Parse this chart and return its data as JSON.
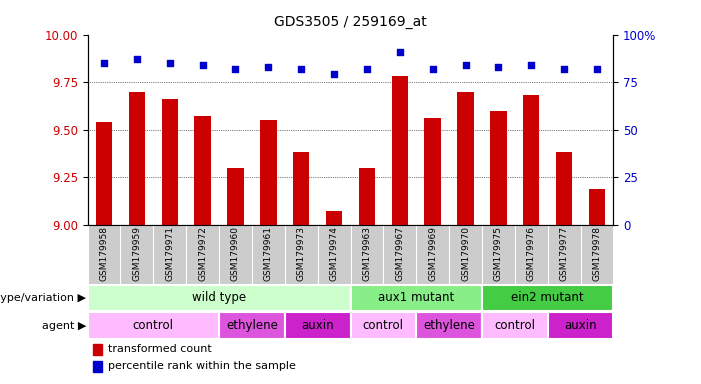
{
  "title": "GDS3505 / 259169_at",
  "samples": [
    "GSM179958",
    "GSM179959",
    "GSM179971",
    "GSM179972",
    "GSM179960",
    "GSM179961",
    "GSM179973",
    "GSM179974",
    "GSM179963",
    "GSM179967",
    "GSM179969",
    "GSM179970",
    "GSM179975",
    "GSM179976",
    "GSM179977",
    "GSM179978"
  ],
  "bar_values": [
    9.54,
    9.7,
    9.66,
    9.57,
    9.3,
    9.55,
    9.38,
    9.07,
    9.3,
    9.78,
    9.56,
    9.7,
    9.6,
    9.68,
    9.38,
    9.19
  ],
  "percentile_values": [
    85,
    87,
    85,
    84,
    82,
    83,
    82,
    79,
    82,
    91,
    82,
    84,
    83,
    84,
    82,
    82
  ],
  "bar_color": "#cc0000",
  "dot_color": "#0000cc",
  "ylim_left": [
    9.0,
    10.0
  ],
  "ylim_right": [
    0,
    100
  ],
  "yticks_left": [
    9.0,
    9.25,
    9.5,
    9.75,
    10.0
  ],
  "yticks_right": [
    0,
    25,
    50,
    75,
    100
  ],
  "yticklabels_right": [
    "0",
    "25",
    "50",
    "75",
    "100%"
  ],
  "grid_values": [
    9.25,
    9.5,
    9.75
  ],
  "genotype_groups": [
    {
      "label": "wild type",
      "start": 0,
      "end": 8,
      "color": "#ccffcc"
    },
    {
      "label": "aux1 mutant",
      "start": 8,
      "end": 12,
      "color": "#88ee88"
    },
    {
      "label": "ein2 mutant",
      "start": 12,
      "end": 16,
      "color": "#44cc44"
    }
  ],
  "agent_groups": [
    {
      "label": "control",
      "start": 0,
      "end": 4,
      "color": "#ffbbff"
    },
    {
      "label": "ethylene",
      "start": 4,
      "end": 6,
      "color": "#dd55dd"
    },
    {
      "label": "auxin",
      "start": 6,
      "end": 8,
      "color": "#cc22cc"
    },
    {
      "label": "control",
      "start": 8,
      "end": 10,
      "color": "#ffbbff"
    },
    {
      "label": "ethylene",
      "start": 10,
      "end": 12,
      "color": "#dd55dd"
    },
    {
      "label": "control",
      "start": 12,
      "end": 14,
      "color": "#ffbbff"
    },
    {
      "label": "auxin",
      "start": 14,
      "end": 16,
      "color": "#cc22cc"
    }
  ],
  "legend_bar_label": "transformed count",
  "legend_dot_label": "percentile rank within the sample",
  "tick_bg_color": "#cccccc",
  "bar_width": 0.5
}
